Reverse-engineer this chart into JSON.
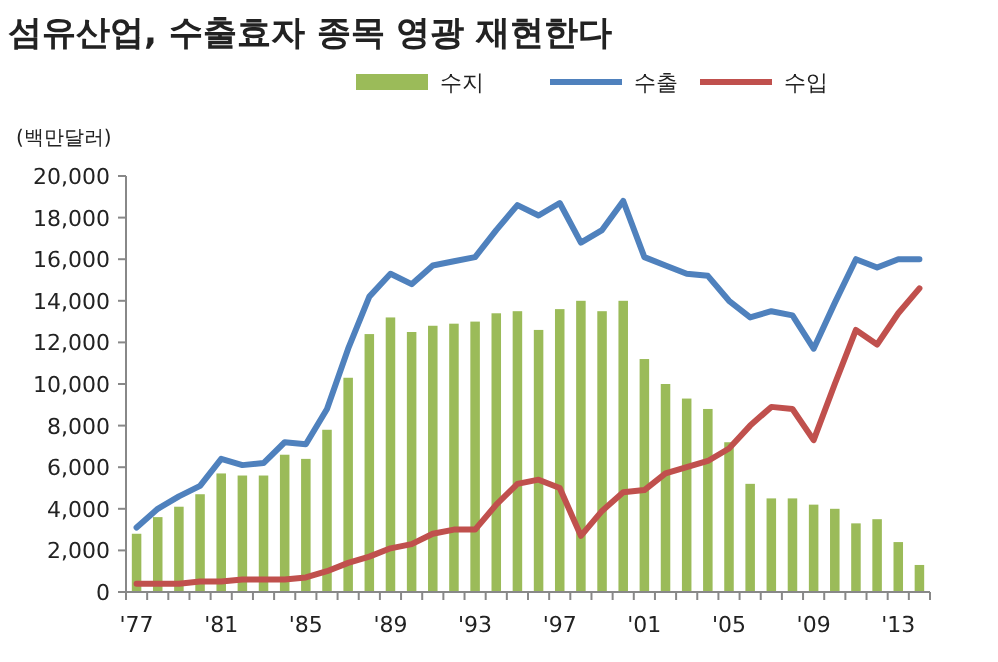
{
  "chart_data": {
    "type": "bar",
    "title": "섬유산업, 수출효자 종목 영광 재현한다",
    "ylabel": "(백만달러)",
    "categories": [
      "'77",
      null,
      null,
      null,
      "'81",
      null,
      null,
      null,
      "'85",
      null,
      null,
      null,
      "'89",
      null,
      null,
      null,
      "'93",
      null,
      null,
      null,
      "'97",
      null,
      null,
      null,
      "'01",
      null,
      null,
      null,
      "'05",
      null,
      null,
      null,
      "'09",
      null,
      null,
      null,
      "'13",
      null
    ],
    "series": [
      {
        "name": "수지",
        "color": "#9bbb59",
        "values": [
          2800,
          3600,
          4100,
          4700,
          5700,
          5600,
          5600,
          6600,
          6400,
          7800,
          10300,
          12400,
          13200,
          12500,
          12800,
          12900,
          13000,
          13400,
          13500,
          12600,
          13600,
          14000,
          13500,
          14000,
          11200,
          10000,
          9300,
          8800,
          7200,
          5200,
          4500,
          4500,
          4200,
          4000,
          3300,
          3500,
          2400,
          1300
        ]
      },
      {
        "name": "수출",
        "type": "line",
        "color": "#4f81bd",
        "values": [
          3100,
          4000,
          4600,
          5100,
          6400,
          6100,
          6200,
          7200,
          7100,
          8800,
          11700,
          14200,
          15300,
          14800,
          15700,
          15900,
          16100,
          17400,
          18600,
          18100,
          18700,
          16800,
          17400,
          18800,
          16100,
          15700,
          15300,
          15200,
          14000,
          13200,
          13500,
          13300,
          11700,
          13900,
          16000,
          15600,
          16000,
          16000
        ]
      },
      {
        "name": "수입",
        "type": "line",
        "color": "#c0504d",
        "values": [
          400,
          400,
          400,
          500,
          500,
          600,
          600,
          600,
          700,
          1000,
          1400,
          1700,
          2100,
          2300,
          2800,
          3000,
          3000,
          4200,
          5200,
          5400,
          5000,
          2700,
          3900,
          4800,
          4900,
          5700,
          6000,
          6300,
          6900,
          8000,
          8900,
          8800,
          7300,
          10000,
          12600,
          11900,
          13400,
          14600
        ]
      }
    ],
    "ylim": [
      0,
      20000
    ],
    "yticks": [
      {
        "value": 0,
        "label": "0"
      },
      {
        "value": 2000,
        "label": "2,000"
      },
      {
        "value": 4000,
        "label": "4,000"
      },
      {
        "value": 6000,
        "label": "6,000"
      },
      {
        "value": 8000,
        "label": "8,000"
      },
      {
        "value": 10000,
        "label": "10,000"
      },
      {
        "value": 12000,
        "label": "12,000"
      },
      {
        "value": 14000,
        "label": "14,000"
      },
      {
        "value": 16000,
        "label": "16,000"
      },
      {
        "value": 18000,
        "label": "18,000"
      },
      {
        "value": 20000,
        "label": "20,000"
      }
    ],
    "legend": "top",
    "grid": false,
    "marker": "none",
    "line_style": "solid"
  }
}
